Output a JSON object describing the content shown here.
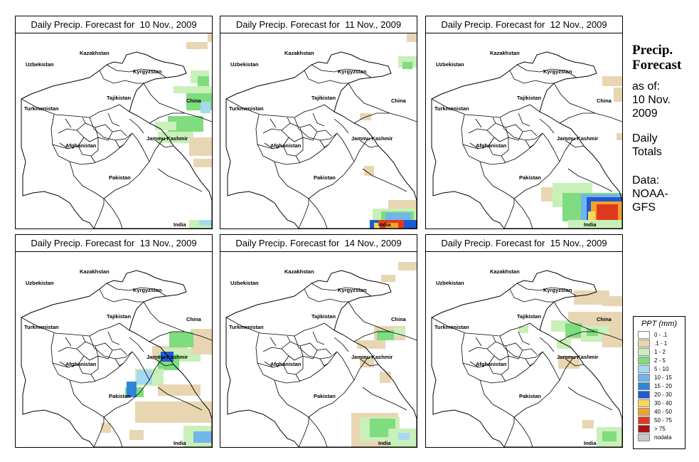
{
  "colors": {
    "none": "#ffffff",
    "trace": "#e8d6b3",
    "light": "#c8f0b8",
    "mod": "#7fdc7f",
    "lightblue": "#a6d8f0",
    "blue1": "#72b4ec",
    "blue2": "#2e86dc",
    "blue3": "#1e5ad4",
    "yellow": "#f7d85a",
    "orange": "#f4a12e",
    "red": "#e03a1e",
    "darkred": "#b01010",
    "grey": "#c8c8c8"
  },
  "panels": [
    {
      "title": "Daily Precip. Forecast for  10 Nov., 2009"
    },
    {
      "title": "Daily Precip. Forecast for  11 Nov., 2009"
    },
    {
      "title": "Daily Precip. Forecast for  12 Nov., 2009"
    },
    {
      "title": "Daily Precip. Forecast for  13 Nov., 2009"
    },
    {
      "title": "Daily Precip. Forecast for  14 Nov., 2009"
    },
    {
      "title": "Daily Precip. Forecast for  15 Nov., 2009"
    }
  ],
  "map_labels": {
    "kazakhstan": "Kazakhstan",
    "uzbekistan": "Uzbekistan",
    "kyrgyzstan": "Kyrgyzstan",
    "tajikistan": "Tajikistan",
    "turkmenistan": "Turkmenistan",
    "china": "China",
    "jammu_kashmir": "Jammu Kashmir",
    "afghanistan": "Afghanistan",
    "pakistan": "Pakistan",
    "india": "India"
  },
  "side": {
    "title_line1": "Precip.",
    "title_line2": "Forecast",
    "asof_line1": "as of:",
    "asof_line2": "10 Nov.",
    "asof_line3": "2009",
    "daily_line1": "Daily",
    "daily_line2": "Totals",
    "data_line1": "Data:",
    "data_line2": "NOAA-",
    "data_line3": "GFS"
  },
  "legend": {
    "title": "PPT (mm)",
    "items": [
      {
        "label": "0 - .1",
        "color": "#ffffff"
      },
      {
        "label": ".1 - 1",
        "color": "#e8d6b3"
      },
      {
        "label": "1 - 2",
        "color": "#c8f0b8"
      },
      {
        "label": "2 - 5",
        "color": "#7fdc7f"
      },
      {
        "label": "5 - 10",
        "color": "#a6d8f0"
      },
      {
        "label": "10 - 15",
        "color": "#72b4ec"
      },
      {
        "label": "15 - 20",
        "color": "#2e86dc"
      },
      {
        "label": "20 - 30",
        "color": "#1e5ad4"
      },
      {
        "label": "30 - 40",
        "color": "#f7d85a"
      },
      {
        "label": "40 - 50",
        "color": "#f4a12e"
      },
      {
        "label": "50 - 75",
        "color": "#e03a1e"
      },
      {
        "label": "> 75",
        "color": "#b01010"
      },
      {
        "label": "nodata",
        "color": "#c8c8c8"
      }
    ]
  }
}
